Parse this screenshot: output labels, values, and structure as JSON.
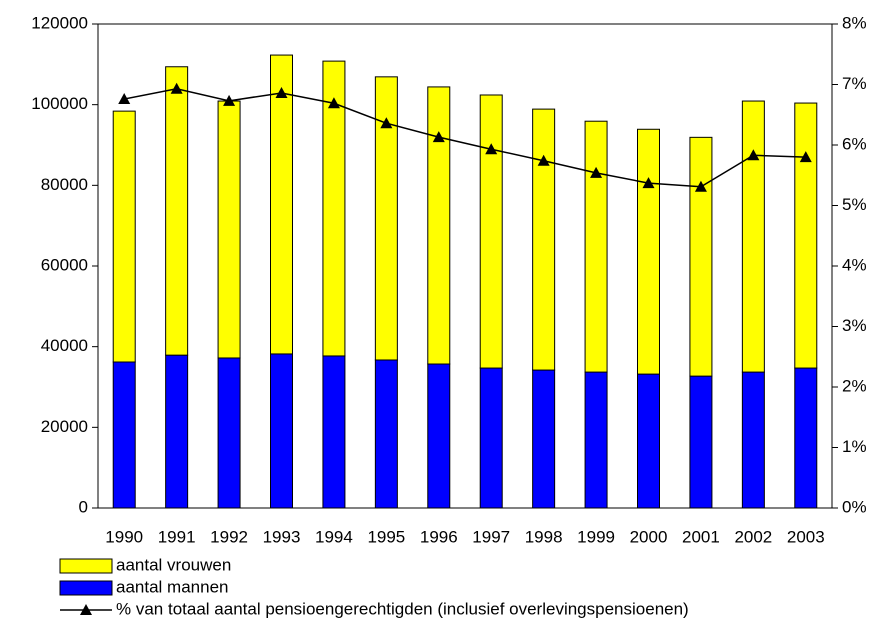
{
  "chart_data": {
    "type": "bar-line",
    "categories": [
      "1990",
      "1991",
      "1992",
      "1993",
      "1994",
      "1995",
      "1996",
      "1997",
      "1998",
      "1999",
      "2000",
      "2001",
      "2002",
      "2003"
    ],
    "series": [
      {
        "name": "aantal mannen",
        "color": "#0000ff",
        "values": [
          36200,
          37900,
          37200,
          38200,
          37700,
          36700,
          35700,
          34700,
          34200,
          33700,
          33200,
          32700,
          33700,
          34700
        ]
      },
      {
        "name": "aantal vrouwen",
        "color": "#ffff00",
        "values": [
          62200,
          71500,
          63700,
          74100,
          73100,
          70200,
          68700,
          67700,
          64700,
          62200,
          60700,
          59200,
          67200,
          65700
        ]
      },
      {
        "name": "% van totaal aantal pensioengerechtigden (inclusief overlevingspensioenen)",
        "color": "#000000",
        "axis": "y2",
        "values": [
          6.76,
          6.93,
          6.73,
          6.86,
          6.69,
          6.36,
          6.13,
          5.93,
          5.74,
          5.54,
          5.37,
          5.31,
          5.83,
          5.8
        ]
      }
    ],
    "ylim": [
      0,
      120000
    ],
    "yticks": [
      0,
      20000,
      40000,
      60000,
      80000,
      100000,
      120000
    ],
    "y2lim": [
      0,
      8
    ],
    "y2ticks": [
      {
        "value": 0,
        "label": "0%"
      },
      {
        "value": 1,
        "label": "1%"
      },
      {
        "value": 2,
        "label": "2%"
      },
      {
        "value": 3,
        "label": "3%"
      },
      {
        "value": 4,
        "label": "4%"
      },
      {
        "value": 5,
        "label": "5%"
      },
      {
        "value": 6,
        "label": "6%"
      },
      {
        "value": 7,
        "label": "7%"
      },
      {
        "value": 8,
        "label": "8%"
      }
    ]
  }
}
